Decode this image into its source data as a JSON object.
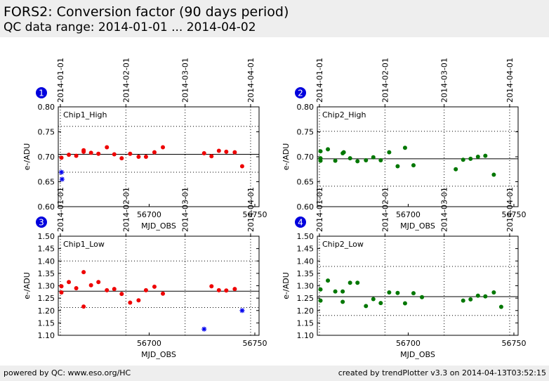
{
  "header": {
    "title": "FORS2: Conversion factor (90 days period)",
    "subtitle": "QC data range: 2014-01-01 ... 2014-04-02"
  },
  "footer": {
    "left": "powered by QC: www.eso.org/HC",
    "right": "created by trendPlotter v3.3 on 2014-04-13T03:52:15"
  },
  "colors": {
    "chip1_points": "#ee0000",
    "chip2_points": "#007700",
    "outlier_marker": "#0000ee",
    "badge": "#0000dd"
  },
  "chart_data": [
    {
      "type": "scatter",
      "badge": "1",
      "label": "Chip1_High",
      "xlabel": "MJD_OBS",
      "ylabel": "e-/ADU",
      "xlim": [
        56657,
        56752
      ],
      "ylim": [
        0.6,
        0.8
      ],
      "yticks": [
        "0.60",
        "0.65",
        "0.70",
        "0.75",
        "0.80"
      ],
      "xticks": [
        56700,
        56750
      ],
      "date_ticks": [
        {
          "label": "2014-01-01",
          "mjd": 56658
        },
        {
          "label": "2014-02-01",
          "mjd": 56689
        },
        {
          "label": "2014-03-01",
          "mjd": 56717
        },
        {
          "label": "2014-04-01",
          "mjd": 56748
        }
      ],
      "mean": 0.705,
      "limits_dotted": [
        0.669,
        0.761
      ],
      "x": [
        56658.5,
        56662,
        56665.5,
        56669,
        56669,
        56672.5,
        56676,
        56680,
        56683.5,
        56687,
        56691,
        56695,
        56698.5,
        56702.5,
        56706.5,
        56726,
        56729.5,
        56733,
        56736.5,
        56740.5,
        56744
      ],
      "y": [
        0.698,
        0.704,
        0.702,
        0.713,
        0.71,
        0.708,
        0.706,
        0.719,
        0.705,
        0.697,
        0.706,
        0.7,
        0.7,
        0.709,
        0.719,
        0.707,
        0.701,
        0.712,
        0.71,
        0.709,
        0.681
      ],
      "outliers_x": [
        56658.5,
        56658.8
      ],
      "outliers_y": [
        0.669,
        0.655
      ]
    },
    {
      "type": "scatter",
      "badge": "2",
      "label": "Chip2_High",
      "xlabel": "MJD_OBS",
      "ylabel": "e-/ADU",
      "xlim": [
        56657,
        56752
      ],
      "ylim": [
        0.6,
        0.8
      ],
      "yticks": [
        "0.60",
        "0.65",
        "0.70",
        "0.75",
        "0.80"
      ],
      "xticks": [
        56700,
        56750
      ],
      "date_ticks": [
        {
          "label": "2014-01-01",
          "mjd": 56658
        },
        {
          "label": "2014-02-01",
          "mjd": 56689
        },
        {
          "label": "2014-03-01",
          "mjd": 56717
        },
        {
          "label": "2014-04-01",
          "mjd": 56748
        }
      ],
      "mean": 0.696,
      "limits_dotted": [
        0.641,
        0.751
      ],
      "x": [
        56658.5,
        56658.5,
        56658.5,
        56662,
        56665.5,
        56669,
        56669.5,
        56672.5,
        56676,
        56680,
        56683.5,
        56687,
        56691,
        56695,
        56698.5,
        56702.5,
        56722.5,
        56726,
        56729.5,
        56733,
        56736.5,
        56740.5
      ],
      "y": [
        0.711,
        0.697,
        0.692,
        0.715,
        0.692,
        0.707,
        0.709,
        0.697,
        0.691,
        0.693,
        0.699,
        0.693,
        0.709,
        0.681,
        0.718,
        0.683,
        0.675,
        0.694,
        0.696,
        0.7,
        0.702,
        0.664
      ]
    },
    {
      "type": "scatter",
      "badge": "3",
      "label": "Chip1_Low",
      "xlabel": "MJD_OBS",
      "ylabel": "e-/ADU",
      "xlim": [
        56657,
        56752
      ],
      "ylim": [
        1.1,
        1.5
      ],
      "yticks": [
        "1.10",
        "1.15",
        "1.20",
        "1.25",
        "1.30",
        "1.35",
        "1.40",
        "1.45",
        "1.50"
      ],
      "xticks": [
        56700,
        56750
      ],
      "date_ticks": [
        {
          "label": "2014-01-01",
          "mjd": 56658
        },
        {
          "label": "2014-02-01",
          "mjd": 56689
        },
        {
          "label": "2014-03-01",
          "mjd": 56717
        },
        {
          "label": "2014-04-01",
          "mjd": 56748
        }
      ],
      "mean": 1.278,
      "limits_dotted": [
        1.212,
        1.4
      ],
      "x": [
        56658.5,
        56658.5,
        56662,
        56665.5,
        56669,
        56669,
        56672.5,
        56676,
        56680,
        56683.5,
        56687,
        56691,
        56695,
        56698.5,
        56702.5,
        56706.5,
        56729.5,
        56733,
        56736.5,
        56740.5
      ],
      "y": [
        1.298,
        1.273,
        1.315,
        1.29,
        1.355,
        1.216,
        1.302,
        1.315,
        1.282,
        1.287,
        1.267,
        1.232,
        1.241,
        1.282,
        1.296,
        1.268,
        1.298,
        1.282,
        1.281,
        1.287
      ],
      "outliers_x": [
        56726,
        56744
      ],
      "outliers_y": [
        1.125,
        1.2
      ]
    },
    {
      "type": "scatter",
      "badge": "4",
      "label": "Chip2_Low",
      "xlabel": "MJD_OBS",
      "ylabel": "e-/ADU",
      "xlim": [
        56657,
        56752
      ],
      "ylim": [
        1.1,
        1.5
      ],
      "yticks": [
        "1.10",
        "1.15",
        "1.20",
        "1.25",
        "1.30",
        "1.35",
        "1.40",
        "1.45",
        "1.50"
      ],
      "xticks": [
        56700,
        56750
      ],
      "date_ticks": [
        {
          "label": "2014-01-01",
          "mjd": 56658
        },
        {
          "label": "2014-02-01",
          "mjd": 56689
        },
        {
          "label": "2014-03-01",
          "mjd": 56717
        },
        {
          "label": "2014-04-01",
          "mjd": 56748
        }
      ],
      "mean": 1.256,
      "limits_dotted": [
        1.18,
        1.378
      ],
      "x": [
        56658.5,
        56658.5,
        56662,
        56665.5,
        56669,
        56669,
        56672.5,
        56676,
        56680,
        56683.5,
        56687,
        56691,
        56695,
        56698.5,
        56702.5,
        56706.5,
        56726,
        56729.5,
        56733,
        56736.5,
        56740.5,
        56744
      ],
      "y": [
        1.285,
        1.24,
        1.321,
        1.277,
        1.277,
        1.235,
        1.312,
        1.312,
        1.218,
        1.246,
        1.23,
        1.273,
        1.271,
        1.229,
        1.27,
        1.254,
        1.24,
        1.245,
        1.26,
        1.257,
        1.273,
        1.215
      ]
    }
  ]
}
